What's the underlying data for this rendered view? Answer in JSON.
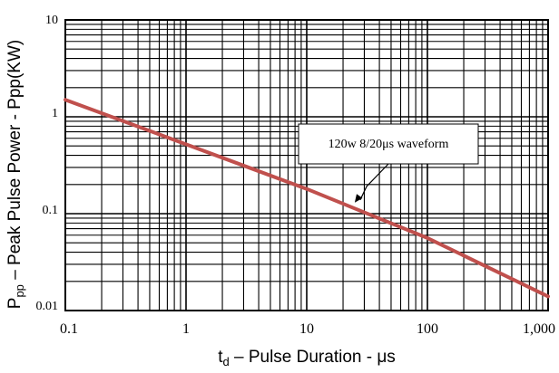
{
  "chart_data": {
    "type": "line",
    "x_scale": "log",
    "y_scale": "log",
    "xlim": [
      0.1,
      1000
    ],
    "ylim": [
      0.01,
      10
    ],
    "grid": true,
    "x_tick_labels": [
      "0.1",
      "1",
      "10",
      "100",
      "1,000"
    ],
    "y_tick_labels": [
      "0.01",
      "0.1",
      "1",
      "10"
    ],
    "xlabel": {
      "main": "t",
      "sub": "d",
      "rest": " –  Pulse Duration - μs"
    },
    "ylabel": {
      "main": "P",
      "sub": "pp",
      "rest": "  –  Peak Pulse Power - Ppp(KW)"
    },
    "series": [
      {
        "color": "#c0504d",
        "x": [
          0.1,
          1,
          10,
          100,
          1000
        ],
        "y": [
          1.5,
          0.52,
          0.18,
          0.056,
          0.014
        ]
      }
    ],
    "annotation": {
      "text": "120w 8/20μs  waveform",
      "target_x": 25,
      "target_y": 0.13
    }
  }
}
